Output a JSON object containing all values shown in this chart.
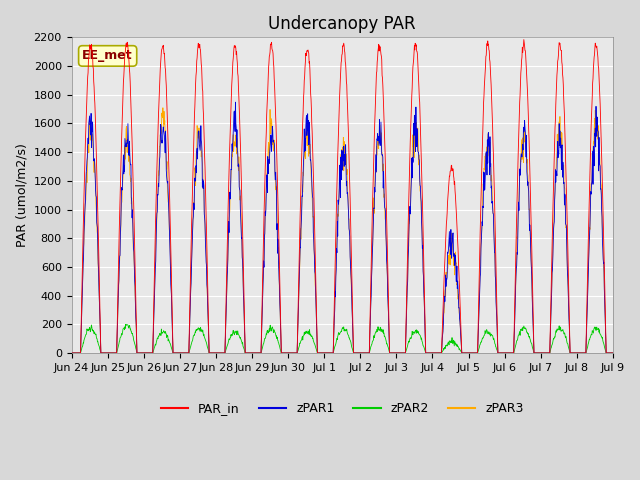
{
  "title": "Undercanopy PAR",
  "ylabel": "PAR (umol/m2/s)",
  "annotation": "EE_met",
  "ylim": [
    0,
    2200
  ],
  "yticks": [
    0,
    200,
    400,
    600,
    800,
    1000,
    1200,
    1400,
    1600,
    1800,
    2000,
    2200
  ],
  "xtick_labels": [
    "Jun 24",
    "Jun 25",
    "Jun 26",
    "Jun 27",
    "Jun 28",
    "Jun 29",
    "Jun 30",
    "Jul 1",
    "Jul 2",
    "Jul 3",
    "Jul 4",
    "Jul 5",
    "Jul 6",
    "Jul 7",
    "Jul 8",
    "Jul 9"
  ],
  "colors": {
    "PAR_in": "#ff0000",
    "zPAR1": "#0000dd",
    "zPAR2": "#00cc00",
    "zPAR3": "#ffaa00"
  },
  "background_color": "#e8e8e8",
  "grid_color": "#ffffff",
  "line_width": 0.6,
  "title_fontsize": 12,
  "label_fontsize": 9,
  "tick_fontsize": 8,
  "annotation_fontsize": 9,
  "annotation_color": "#8b0000",
  "annotation_bbox_fc": "#ffffcc",
  "annotation_bbox_ec": "#aaaa00"
}
